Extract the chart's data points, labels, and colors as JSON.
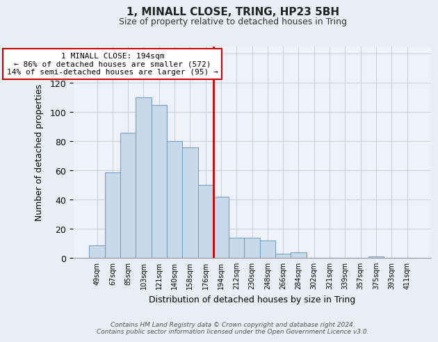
{
  "title": "1, MINALL CLOSE, TRING, HP23 5BH",
  "subtitle": "Size of property relative to detached houses in Tring",
  "xlabel": "Distribution of detached houses by size in Tring",
  "ylabel": "Number of detached properties",
  "bar_labels": [
    "49sqm",
    "67sqm",
    "85sqm",
    "103sqm",
    "121sqm",
    "140sqm",
    "158sqm",
    "176sqm",
    "194sqm",
    "212sqm",
    "230sqm",
    "248sqm",
    "266sqm",
    "284sqm",
    "302sqm",
    "321sqm",
    "339sqm",
    "357sqm",
    "375sqm",
    "393sqm",
    "411sqm"
  ],
  "bar_values": [
    9,
    59,
    86,
    110,
    105,
    80,
    76,
    50,
    42,
    14,
    14,
    12,
    3,
    4,
    0,
    0,
    0,
    0,
    1,
    0,
    0
  ],
  "bar_color": "#c8daea",
  "bar_edge_color": "#7aa0c0",
  "highlight_index": 8,
  "highlight_line_color": "#cc0000",
  "annotation_line1": "1 MINALL CLOSE: 194sqm",
  "annotation_line2": "← 86% of detached houses are smaller (572)",
  "annotation_line3": "14% of semi-detached houses are larger (95) →",
  "annotation_box_color": "#ffffff",
  "annotation_box_edge_color": "#cc0000",
  "ylim": [
    0,
    145
  ],
  "yticks": [
    0,
    20,
    40,
    60,
    80,
    100,
    120,
    140
  ],
  "footer_text": "Contains HM Land Registry data © Crown copyright and database right 2024.\nContains public sector information licensed under the Open Government Licence v3.0.",
  "bg_color": "#e8eef4",
  "plot_bg_color": "#eef2f8",
  "grid_color": "#c8d0dc",
  "title_fontsize": 11,
  "subtitle_fontsize": 9
}
